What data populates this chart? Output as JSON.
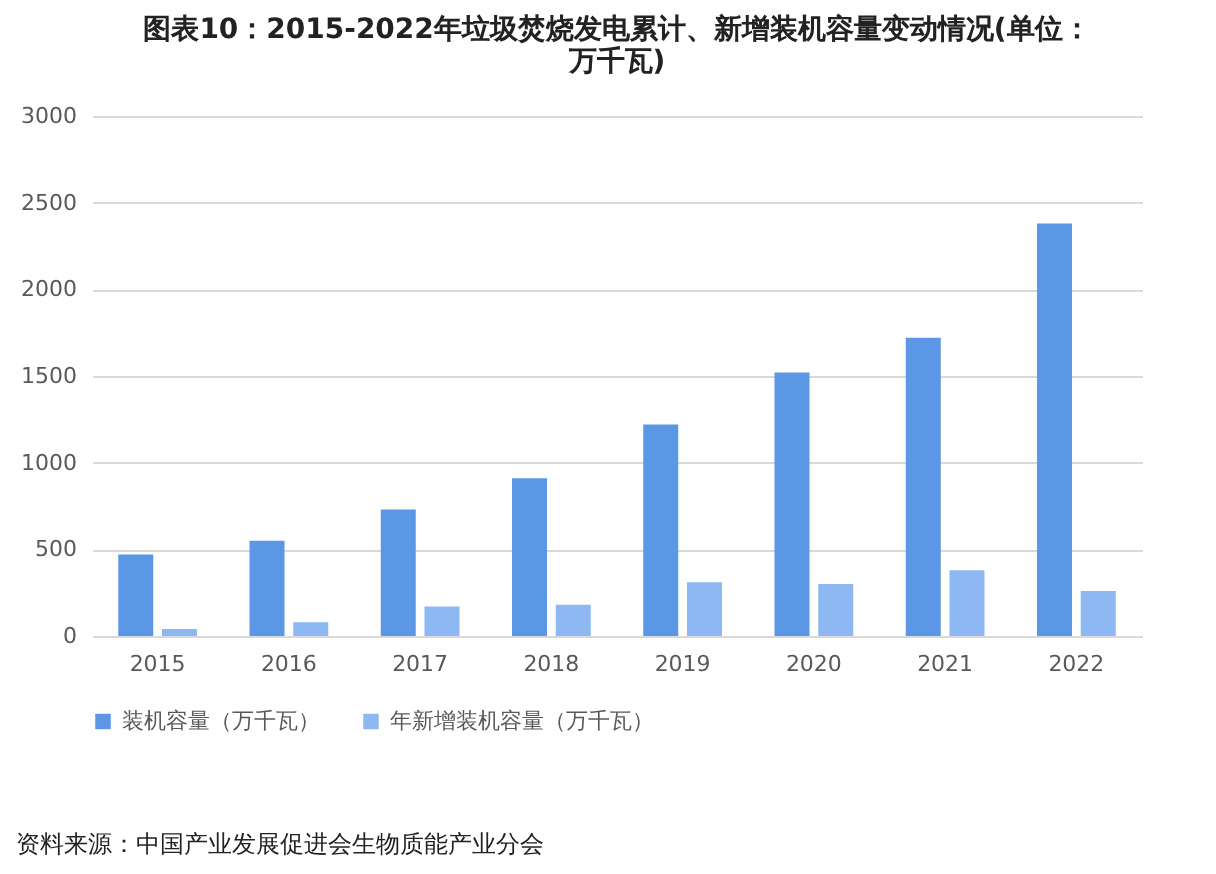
{
  "chart_data": {
    "type": "bar",
    "title": "图表10：2015-2022年垃圾焚烧发电累计、新增装机容量变动情况(单位：万千瓦)",
    "categories": [
      "2015",
      "2016",
      "2017",
      "2018",
      "2019",
      "2020",
      "2021",
      "2022"
    ],
    "series": [
      {
        "name": "装机容量（万千瓦）",
        "color": "#5b97e5",
        "values": [
          470,
          550,
          730,
          910,
          1220,
          1520,
          1720,
          2380
        ]
      },
      {
        "name": "年新增装机容量（万千瓦）",
        "color": "#8db8f2",
        "values": [
          40,
          80,
          170,
          180,
          310,
          300,
          380,
          260
        ]
      }
    ],
    "ylim": [
      0,
      3000
    ],
    "yticks": [
      0,
      500,
      1000,
      1500,
      2000,
      2500,
      3000
    ],
    "grid": "y",
    "legend": "bottom",
    "annotations": [
      "资料来源：中国产业发展促进会生物质能产业分会"
    ]
  }
}
